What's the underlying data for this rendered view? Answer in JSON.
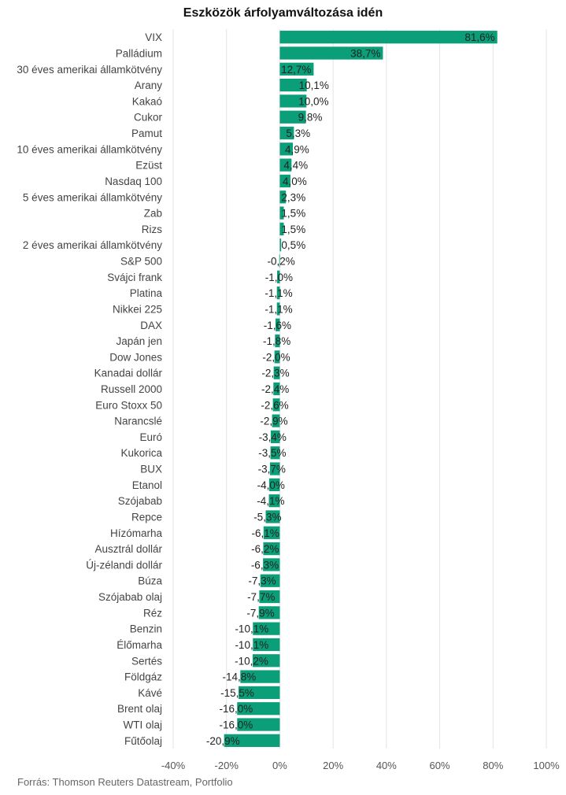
{
  "chart_data": {
    "type": "bar",
    "orientation": "horizontal",
    "title": "Eszközök árfolyamváltozása idén",
    "source": "Forrás: Thomson Reuters Datastream, Portfolio",
    "xlim": [
      -40,
      100
    ],
    "xticks": [
      -40,
      -20,
      0,
      20,
      40,
      60,
      80,
      100
    ],
    "xtick_labels": [
      "-40%",
      "-20%",
      "0%",
      "20%",
      "40%",
      "60%",
      "80%",
      "100%"
    ],
    "grid": "vertical",
    "bar_color": "#0a9f78",
    "categories": [
      "VIX",
      "Palládium",
      "30 éves amerikai államkötvény",
      "Arany",
      "Kakaó",
      "Cukor",
      "Pamut",
      "10 éves amerikai államkötvény",
      "Ezüst",
      "Nasdaq 100",
      "5 éves amerikai államkötvény",
      "Zab",
      "Rizs",
      "2 éves amerikai államkötvény",
      "S&P 500",
      "Svájci frank",
      "Platina",
      "Nikkei 225",
      "DAX",
      "Japán jen",
      "Dow Jones",
      "Kanadai dollár",
      "Russell 2000",
      "Euro Stoxx 50",
      "Narancslé",
      "Euró",
      "Kukorica",
      "BUX",
      "Etanol",
      "Szójabab",
      "Repce",
      "Hízómarha",
      "Ausztrál dollár",
      "Új-zélandi dollár",
      "Búza",
      "Szójabab olaj",
      "Réz",
      "Benzin",
      "Élőmarha",
      "Sertés",
      "Földgáz",
      "Kávé",
      "Brent olaj",
      "WTI olaj",
      "Fűtőolaj"
    ],
    "values": [
      81.6,
      38.7,
      12.7,
      10.1,
      10.0,
      9.8,
      5.3,
      4.9,
      4.4,
      4.0,
      2.3,
      1.5,
      1.5,
      0.5,
      -0.2,
      -1.0,
      -1.1,
      -1.1,
      -1.6,
      -1.8,
      -2.0,
      -2.3,
      -2.4,
      -2.6,
      -2.9,
      -3.4,
      -3.5,
      -3.7,
      -4.0,
      -4.1,
      -5.3,
      -6.1,
      -6.2,
      -6.3,
      -7.3,
      -7.7,
      -7.9,
      -10.1,
      -10.1,
      -10.2,
      -14.8,
      -15.5,
      -16.0,
      -16.0,
      -20.9
    ],
    "value_labels": [
      "81,6%",
      "38,7%",
      "12,7%",
      "10,1%",
      "10,0%",
      "9,8%",
      "5,3%",
      "4,9%",
      "4,4%",
      "4,0%",
      "2,3%",
      "1,5%",
      "1,5%",
      "0,5%",
      "-0,2%",
      "-1,0%",
      "-1,1%",
      "-1,1%",
      "-1,6%",
      "-1,8%",
      "-2,0%",
      "-2,3%",
      "-2,4%",
      "-2,6%",
      "-2,9%",
      "-3,4%",
      "-3,5%",
      "-3,7%",
      "-4,0%",
      "-4,1%",
      "-5,3%",
      "-6,1%",
      "-6,2%",
      "-6,3%",
      "-7,3%",
      "-7,7%",
      "-7,9%",
      "-10,1%",
      "-10,1%",
      "-10,2%",
      "-14,8%",
      "-15,5%",
      "-16,0%",
      "-16,0%",
      "-20,9%"
    ]
  }
}
